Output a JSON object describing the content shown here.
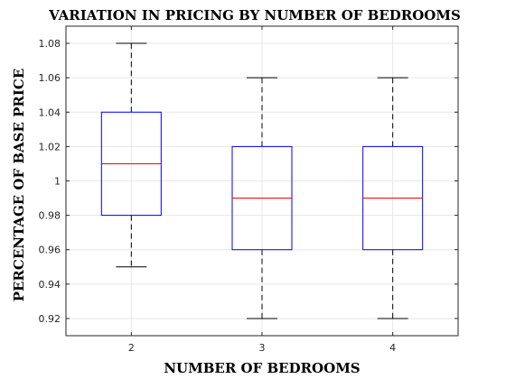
{
  "chart_data": {
    "type": "box",
    "title": "VARIATION IN PRICING BY NUMBER OF BEDROOMS",
    "xlabel": "NUMBER OF BEDROOMS",
    "ylabel": "PERCENTAGE OF BASE PRICE",
    "categories": [
      "2",
      "3",
      "4"
    ],
    "ylim": [
      0.91,
      1.09
    ],
    "yticks": [
      0.92,
      0.94,
      0.96,
      0.98,
      1.0,
      1.02,
      1.04,
      1.06,
      1.08
    ],
    "ytick_labels": [
      "0.92",
      "0.94",
      "0.96",
      "0.98",
      "1",
      "1.02",
      "1.04",
      "1.06",
      "1.08"
    ],
    "grid": true,
    "boxes": [
      {
        "category": "2",
        "whisker_low": 0.95,
        "q1": 0.98,
        "median": 1.01,
        "q3": 1.04,
        "whisker_high": 1.08
      },
      {
        "category": "3",
        "whisker_low": 0.92,
        "q1": 0.96,
        "median": 0.99,
        "q3": 1.02,
        "whisker_high": 1.06
      },
      {
        "category": "4",
        "whisker_low": 0.92,
        "q1": 0.96,
        "median": 0.99,
        "q3": 1.02,
        "whisker_high": 1.06
      }
    ],
    "colors": {
      "box": "#0000ff",
      "median": "#ff0000",
      "whisker": "#000000",
      "grid": "#e6e6e6",
      "axis": "#262626"
    }
  }
}
